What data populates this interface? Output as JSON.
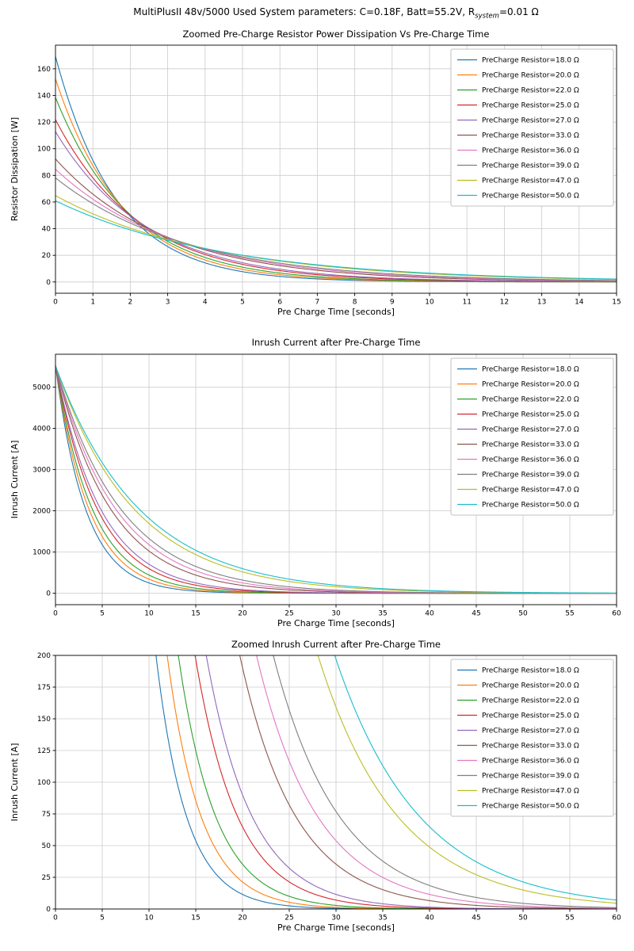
{
  "suptitle": {
    "prefix": "MultiPlusII 48v/5000 Used System parameters: C=0.18F, Batt=55.2V, R",
    "sub": "system",
    "suffix": "=0.01 Ω"
  },
  "chart_data": [
    {
      "type": "line",
      "title": "Zoomed Pre-Charge Resistor Power Dissipation Vs Pre-Charge Time",
      "xlabel": "Pre Charge Time [seconds]",
      "ylabel": "Resistor Dissipation [W]",
      "xlim": [
        0,
        15
      ],
      "ylim": [
        -8.46,
        177.74
      ],
      "xticks": [
        0,
        1,
        2,
        3,
        4,
        5,
        6,
        7,
        8,
        9,
        10,
        11,
        12,
        13,
        14,
        15
      ],
      "yticks": [
        0,
        20,
        40,
        60,
        80,
        100,
        120,
        140,
        160
      ],
      "grid": true,
      "legend_position": "upper right",
      "model": "y(t) = y0 * exp(-t / tau); y0 = Batt^2/R, tau = R*C/2",
      "params": {
        "C": 0.18,
        "Batt": 55.2
      },
      "series": [
        {
          "name": "PreCharge Resistor=18.0 Ω",
          "R": 18.0,
          "color": "#1f77b4",
          "y0": 169.28,
          "tau": 1.62
        },
        {
          "name": "PreCharge Resistor=20.0 Ω",
          "R": 20.0,
          "color": "#ff7f0e",
          "y0": 152.35,
          "tau": 1.8
        },
        {
          "name": "PreCharge Resistor=22.0 Ω",
          "R": 22.0,
          "color": "#2ca02c",
          "y0": 138.5,
          "tau": 1.98
        },
        {
          "name": "PreCharge Resistor=25.0 Ω",
          "R": 25.0,
          "color": "#d62728",
          "y0": 121.88,
          "tau": 2.25
        },
        {
          "name": "PreCharge Resistor=27.0 Ω",
          "R": 27.0,
          "color": "#9467bd",
          "y0": 112.85,
          "tau": 2.43
        },
        {
          "name": "PreCharge Resistor=33.0 Ω",
          "R": 33.0,
          "color": "#8c564b",
          "y0": 92.33,
          "tau": 2.97
        },
        {
          "name": "PreCharge Resistor=36.0 Ω",
          "R": 36.0,
          "color": "#e377c2",
          "y0": 84.64,
          "tau": 3.24
        },
        {
          "name": "PreCharge Resistor=39.0 Ω",
          "R": 39.0,
          "color": "#7f7f7f",
          "y0": 78.13,
          "tau": 3.51
        },
        {
          "name": "PreCharge Resistor=47.0 Ω",
          "R": 47.0,
          "color": "#bcbd22",
          "y0": 64.83,
          "tau": 4.23
        },
        {
          "name": "PreCharge Resistor=50.0 Ω",
          "R": 50.0,
          "color": "#17becf",
          "y0": 60.94,
          "tau": 4.5
        }
      ]
    },
    {
      "type": "line",
      "title": "Inrush Current after Pre-Charge Time",
      "xlabel": "Pre Charge Time [seconds]",
      "ylabel": "Inrush Current [A]",
      "xlim": [
        0,
        60
      ],
      "ylim": [
        -276,
        5796
      ],
      "xticks": [
        0,
        5,
        10,
        15,
        20,
        25,
        30,
        35,
        40,
        45,
        50,
        55,
        60
      ],
      "yticks": [
        0,
        1000,
        2000,
        3000,
        4000,
        5000
      ],
      "grid": true,
      "legend_position": "upper right",
      "model": "y(t) = y0 * exp(-t / tau); y0 = Batt/Rsystem, tau = R*C",
      "params": {
        "C": 0.18,
        "Batt": 55.2,
        "Rsystem": 0.01
      },
      "series": [
        {
          "name": "PreCharge Resistor=18.0 Ω",
          "R": 18.0,
          "color": "#1f77b4",
          "y0": 5520,
          "tau": 3.24
        },
        {
          "name": "PreCharge Resistor=20.0 Ω",
          "R": 20.0,
          "color": "#ff7f0e",
          "y0": 5520,
          "tau": 3.6
        },
        {
          "name": "PreCharge Resistor=22.0 Ω",
          "R": 22.0,
          "color": "#2ca02c",
          "y0": 5520,
          "tau": 3.96
        },
        {
          "name": "PreCharge Resistor=25.0 Ω",
          "R": 25.0,
          "color": "#d62728",
          "y0": 5520,
          "tau": 4.5
        },
        {
          "name": "PreCharge Resistor=27.0 Ω",
          "R": 27.0,
          "color": "#9467bd",
          "y0": 5520,
          "tau": 4.86
        },
        {
          "name": "PreCharge Resistor=33.0 Ω",
          "R": 33.0,
          "color": "#8c564b",
          "y0": 5520,
          "tau": 5.94
        },
        {
          "name": "PreCharge Resistor=36.0 Ω",
          "R": 36.0,
          "color": "#e377c2",
          "y0": 5520,
          "tau": 6.48
        },
        {
          "name": "PreCharge Resistor=39.0 Ω",
          "R": 39.0,
          "color": "#7f7f7f",
          "y0": 5520,
          "tau": 7.02
        },
        {
          "name": "PreCharge Resistor=47.0 Ω",
          "R": 47.0,
          "color": "#bcbd22",
          "y0": 5520,
          "tau": 8.46
        },
        {
          "name": "PreCharge Resistor=50.0 Ω",
          "R": 50.0,
          "color": "#17becf",
          "y0": 5520,
          "tau": 9.0
        }
      ]
    },
    {
      "type": "line",
      "title": "Zoomed Inrush Current after Pre-Charge Time",
      "xlabel": "Pre Charge Time [seconds]",
      "ylabel": "Inrush Current [A]",
      "xlim": [
        0,
        60
      ],
      "ylim": [
        0,
        200
      ],
      "xticks": [
        0,
        5,
        10,
        15,
        20,
        25,
        30,
        35,
        40,
        45,
        50,
        55,
        60
      ],
      "yticks": [
        0,
        25,
        50,
        75,
        100,
        125,
        150,
        175,
        200
      ],
      "grid": true,
      "legend_position": "upper right",
      "model": "y(t) = y0 * exp(-t / tau); y0 = Batt/Rsystem, tau = R*C",
      "params": {
        "C": 0.18,
        "Batt": 55.2,
        "Rsystem": 0.01
      },
      "series": [
        {
          "name": "PreCharge Resistor=18.0 Ω",
          "R": 18.0,
          "color": "#1f77b4",
          "y0": 5520,
          "tau": 3.24
        },
        {
          "name": "PreCharge Resistor=20.0 Ω",
          "R": 20.0,
          "color": "#ff7f0e",
          "y0": 5520,
          "tau": 3.6
        },
        {
          "name": "PreCharge Resistor=22.0 Ω",
          "R": 22.0,
          "color": "#2ca02c",
          "y0": 5520,
          "tau": 3.96
        },
        {
          "name": "PreCharge Resistor=25.0 Ω",
          "R": 25.0,
          "color": "#d62728",
          "y0": 5520,
          "tau": 4.5
        },
        {
          "name": "PreCharge Resistor=27.0 Ω",
          "R": 27.0,
          "color": "#9467bd",
          "y0": 5520,
          "tau": 4.86
        },
        {
          "name": "PreCharge Resistor=33.0 Ω",
          "R": 33.0,
          "color": "#8c564b",
          "y0": 5520,
          "tau": 5.94
        },
        {
          "name": "PreCharge Resistor=36.0 Ω",
          "R": 36.0,
          "color": "#e377c2",
          "y0": 5520,
          "tau": 6.48
        },
        {
          "name": "PreCharge Resistor=39.0 Ω",
          "R": 39.0,
          "color": "#7f7f7f",
          "y0": 5520,
          "tau": 7.02
        },
        {
          "name": "PreCharge Resistor=47.0 Ω",
          "R": 47.0,
          "color": "#bcbd22",
          "y0": 5520,
          "tau": 8.46
        },
        {
          "name": "PreCharge Resistor=50.0 Ω",
          "R": 50.0,
          "color": "#17becf",
          "y0": 5520,
          "tau": 9.0
        }
      ]
    }
  ]
}
